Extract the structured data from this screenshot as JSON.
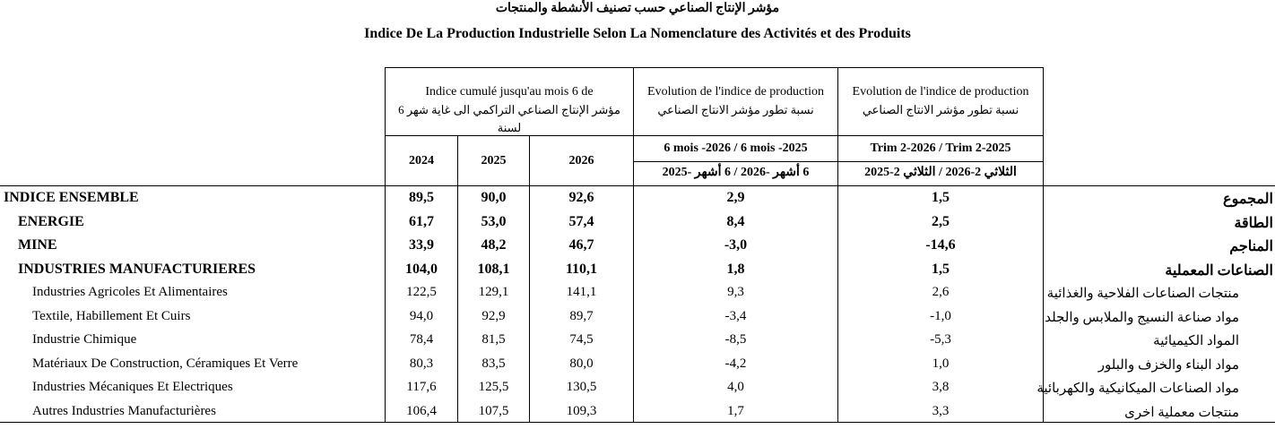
{
  "title_ar": "مؤشر الإنتاج الصناعي حسب تصنيف الأنشطة والمنتجات",
  "title_fr": "Indice De La Production Industrielle Selon La Nomenclature des Activités et des Produits",
  "header": {
    "col1_fr": "Indice cumulé jusqu'au mois 6 de",
    "col1_ar": "مؤشر الإنتاج الصناعي التراكمي الى غاية شهر 6 لسنة",
    "col2_fr": "Evolution de l'indice de production",
    "col2_ar": "نسبة تطور مؤشر الانتاج الصناعي",
    "col3_fr": "Evolution de l'indice de production",
    "col3_ar": "نسبة تطور مؤشر الانتاج الصناعي",
    "years": [
      "2024",
      "2025",
      "2026"
    ],
    "col2_period_fr": "6 mois -2026 / 6 mois -2025",
    "col2_period_ar": "6 أشهر -2026 / 6 أشهر -2025",
    "col3_period_fr": "Trim 2-2026 / Trim 2-2025",
    "col3_period_ar": "الثلاثي 2-2026 / الثلاثي 2-2025"
  },
  "rows": [
    {
      "fr": "INDICE ENSEMBLE",
      "ar": "المجموع",
      "v2024": "89,5",
      "v2025": "90,0",
      "v2026": "92,6",
      "evo6m": "2,9",
      "evotrim": "1,5",
      "level": 0
    },
    {
      "fr": "ENERGIE",
      "ar": "الطاقة",
      "v2024": "61,7",
      "v2025": "53,0",
      "v2026": "57,4",
      "evo6m": "8,4",
      "evotrim": "2,5",
      "level": 1
    },
    {
      "fr": "MINE",
      "ar": "المناجم",
      "v2024": "33,9",
      "v2025": "48,2",
      "v2026": "46,7",
      "evo6m": "-3,0",
      "evotrim": "-14,6",
      "level": 1
    },
    {
      "fr": "INDUSTRIES MANUFACTURIERES",
      "ar": "الصناعات المعملية",
      "v2024": "104,0",
      "v2025": "108,1",
      "v2026": "110,1",
      "evo6m": "1,8",
      "evotrim": "1,5",
      "level": 1
    },
    {
      "fr": "Industries Agricoles Et Alimentaires",
      "ar": "منتجات الصناعات الفلاحية والغذائية",
      "v2024": "122,5",
      "v2025": "129,1",
      "v2026": "141,1",
      "evo6m": "9,3",
      "evotrim": "2,6",
      "level": 2
    },
    {
      "fr": "Textile, Habillement Et Cuirs",
      "ar": "مواد صناعة النسيج والملابس والجلد",
      "v2024": "94,0",
      "v2025": "92,9",
      "v2026": "89,7",
      "evo6m": "-3,4",
      "evotrim": "-1,0",
      "level": 2
    },
    {
      "fr": "Industrie Chimique",
      "ar": "المواد الكيميائية",
      "v2024": "78,4",
      "v2025": "81,5",
      "v2026": "74,5",
      "evo6m": "-8,5",
      "evotrim": "-5,3",
      "level": 2
    },
    {
      "fr": "Matériaux De Construction, Céramiques Et Verre",
      "ar": "مواد البناء والخزف والبلور",
      "v2024": "80,3",
      "v2025": "83,5",
      "v2026": "80,0",
      "evo6m": "-4,2",
      "evotrim": "1,0",
      "level": 2
    },
    {
      "fr": "Industries Mécaniques Et Electriques",
      "ar": "مواد الصناعات الميكانيكية والكهربائية",
      "v2024": "117,6",
      "v2025": "125,5",
      "v2026": "130,5",
      "evo6m": "4,0",
      "evotrim": "3,8",
      "level": 2
    },
    {
      "fr": "Autres Industries Manufacturières",
      "ar": "منتجات معملية اخرى",
      "v2024": "106,4",
      "v2025": "107,5",
      "v2026": "109,3",
      "evo6m": "1,7",
      "evotrim": "3,3",
      "level": 2
    }
  ]
}
